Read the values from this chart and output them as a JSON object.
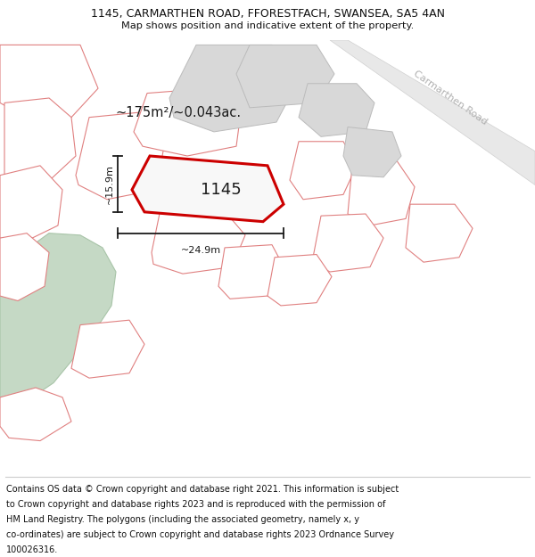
{
  "title_line1": "1145, CARMARTHEN ROAD, FFORESTFACH, SWANSEA, SA5 4AN",
  "title_line2": "Map shows position and indicative extent of the property.",
  "footer_lines": [
    "Contains OS data © Crown copyright and database right 2021. This information is subject",
    "to Crown copyright and database rights 2023 and is reproduced with the permission of",
    "HM Land Registry. The polygons (including the associated geometry, namely x, y",
    "co-ordinates) are subject to Crown copyright and database rights 2023 Ordnance Survey",
    "100026316."
  ],
  "bg_color": "#ffffff",
  "area_label": "~175m²/~0.043ac.",
  "plot_number": "1145",
  "dim_width": "~24.9m",
  "dim_height": "~15.9m",
  "road_label": "Carmarthen Road",
  "title_fontsize": 9.0,
  "subtitle_fontsize": 8.2,
  "footer_fontsize": 7.0,
  "road_label_color": "#b0b0b0",
  "pink_edge": "#e08080",
  "gray_fill": "#d8d8d8",
  "gray_edge": "#bbbbbb",
  "green_fill": "#c5d9c5",
  "green_edge": "#a8c4a8",
  "highlight_edge": "#cc0000",
  "highlight_fill": "#f8f8f8",
  "dim_color": "#1a1a1a",
  "label_color": "#1a1a1a",
  "white_fill": "#ffffff",
  "road_fill": "#e8e8e8",
  "road_edge": "#d0d0d0"
}
